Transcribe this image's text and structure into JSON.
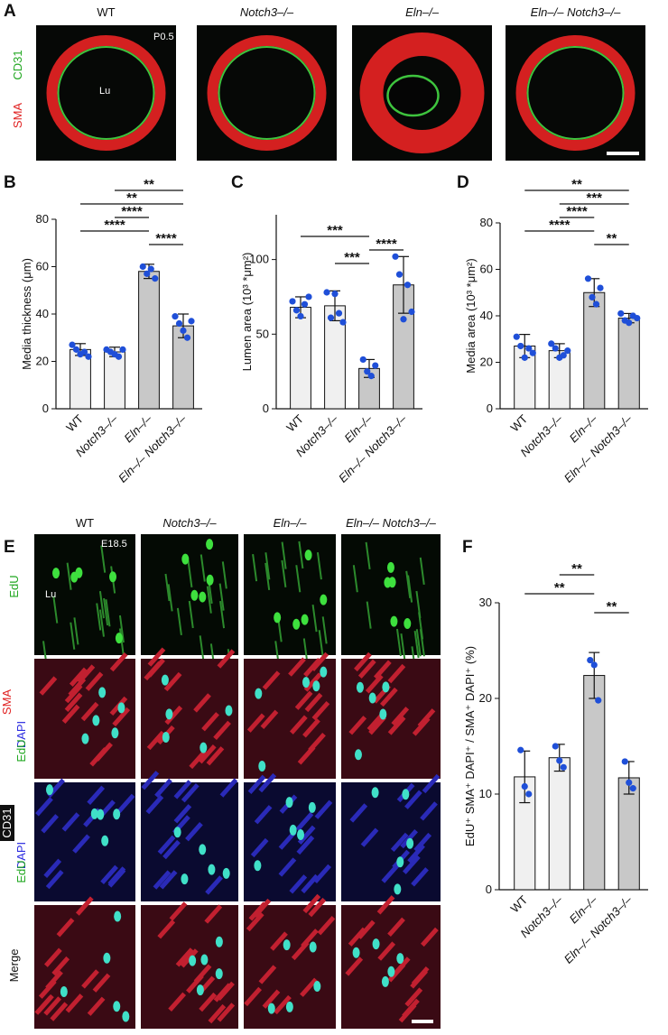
{
  "panel_a": {
    "letter": "A",
    "columns": [
      "WT",
      "Notch3–/–",
      "Eln–/–",
      "Eln–/– Notch3–/–"
    ],
    "stains": [
      "CD31",
      "SMA"
    ],
    "age": "P0.5",
    "lumen": "Lu"
  },
  "panel_e": {
    "letter": "E",
    "columns": [
      "WT",
      "Notch3–/–",
      "Eln–/–",
      "Eln–/– Notch3–/–"
    ],
    "age": "E18.5",
    "lumen": "Lu",
    "rows": [
      [
        "EdU"
      ],
      [
        "SMA",
        "DAPI",
        "EdU"
      ],
      [
        "CD31",
        "DAPI",
        "EdU"
      ],
      [
        "Merge"
      ]
    ]
  },
  "chart_data": [
    {
      "type": "bar",
      "panel": "B",
      "y_label": "Media thickness (μm)",
      "categories": [
        "WT",
        "Notch3–/–",
        "Eln–/–",
        "Eln–/– Notch3–/–"
      ],
      "values": [
        25,
        24,
        58,
        35
      ],
      "errors": [
        2.5,
        2,
        3,
        5
      ],
      "points": [
        [
          27,
          25,
          23,
          24,
          22
        ],
        [
          25,
          24,
          23,
          22,
          25
        ],
        [
          60,
          57,
          59,
          55
        ],
        [
          39,
          36,
          33,
          30,
          37
        ]
      ],
      "colors": [
        "#f0f0f0",
        "#f0f0f0",
        "#c8c8c8",
        "#c8c8c8"
      ],
      "point_color": "#1f4fd8",
      "ylim": [
        0,
        80
      ],
      "yticks": [
        0,
        20,
        40,
        60,
        80
      ],
      "significance": [
        {
          "between": [
            "Notch3–/–",
            "Eln–/– Notch3–/–"
          ],
          "label": "**"
        },
        {
          "between": [
            "WT",
            "Eln–/– Notch3–/–"
          ],
          "label": "**"
        },
        {
          "between": [
            "Notch3–/–",
            "Eln–/–"
          ],
          "label": "****"
        },
        {
          "between": [
            "WT",
            "Eln–/–"
          ],
          "label": "****"
        },
        {
          "between": [
            "Eln–/–",
            "Eln–/– Notch3–/–"
          ],
          "label": "****"
        }
      ]
    },
    {
      "type": "bar",
      "panel": "C",
      "y_label": "Lumen area (10³ *μm²)",
      "categories": [
        "WT",
        "Notch3–/–",
        "Eln–/–",
        "Eln–/– Notch3–/–"
      ],
      "values": [
        68,
        69,
        27,
        83
      ],
      "errors": [
        7,
        10,
        6,
        19
      ],
      "points": [
        [
          72,
          66,
          62,
          70,
          75
        ],
        [
          78,
          61,
          77,
          64,
          58
        ],
        [
          33,
          25,
          22,
          29
        ],
        [
          102,
          90,
          60,
          83,
          65
        ]
      ],
      "colors": [
        "#f0f0f0",
        "#f0f0f0",
        "#c8c8c8",
        "#c8c8c8"
      ],
      "point_color": "#1f4fd8",
      "ylim": [
        0,
        130
      ],
      "yticks": [
        0,
        50,
        100
      ],
      "significance": [
        {
          "between": [
            "WT",
            "Eln–/–"
          ],
          "label": "***"
        },
        {
          "between": [
            "Eln–/–",
            "Eln–/– Notch3–/–"
          ],
          "label": "****"
        },
        {
          "between": [
            "Notch3–/–",
            "Eln–/–"
          ],
          "label": "***"
        }
      ]
    },
    {
      "type": "bar",
      "panel": "D",
      "y_label": "Media area (10³ *μm²)",
      "categories": [
        "WT",
        "Notch3–/–",
        "Eln–/–",
        "Eln–/– Notch3–/–"
      ],
      "values": [
        27,
        25,
        50,
        39
      ],
      "errors": [
        5,
        3,
        6,
        2
      ],
      "points": [
        [
          31,
          27,
          22,
          26,
          24
        ],
        [
          28,
          26,
          22,
          23,
          25
        ],
        [
          56,
          48,
          45,
          52
        ],
        [
          41,
          38,
          37,
          40,
          39
        ]
      ],
      "colors": [
        "#f0f0f0",
        "#f0f0f0",
        "#c8c8c8",
        "#c8c8c8"
      ],
      "point_color": "#1f4fd8",
      "ylim": [
        0,
        80
      ],
      "yticks": [
        0,
        20,
        40,
        60,
        80
      ],
      "significance": [
        {
          "between": [
            "WT",
            "Eln–/– Notch3–/–"
          ],
          "label": "**"
        },
        {
          "between": [
            "Notch3–/–",
            "Eln–/– Notch3–/–"
          ],
          "label": "***"
        },
        {
          "between": [
            "Notch3–/–",
            "Eln–/–"
          ],
          "label": "****"
        },
        {
          "between": [
            "WT",
            "Eln–/–"
          ],
          "label": "****"
        },
        {
          "between": [
            "Eln–/–",
            "Eln–/– Notch3–/–"
          ],
          "label": "**"
        }
      ]
    },
    {
      "type": "bar",
      "panel": "F",
      "y_label": "EdU⁺ SMA⁺ DAPI⁺ / SMA⁺ DAPI⁺ (%)",
      "categories": [
        "WT",
        "Notch3–/–",
        "Eln–/–",
        "Eln–/– Notch3–/–"
      ],
      "values": [
        11.8,
        13.8,
        22.4,
        11.7
      ],
      "errors": [
        2.7,
        1.4,
        2.4,
        1.7
      ],
      "points": [
        [
          14.6,
          10.8,
          10
        ],
        [
          15,
          13.5,
          12.8
        ],
        [
          24,
          23.5,
          19.8
        ],
        [
          13.4,
          11.2,
          10.6
        ]
      ],
      "colors": [
        "#f0f0f0",
        "#f0f0f0",
        "#c8c8c8",
        "#c8c8c8"
      ],
      "point_color": "#1f4fd8",
      "ylim": [
        0,
        30
      ],
      "yticks": [
        0,
        10,
        20,
        30
      ],
      "significance": [
        {
          "between": [
            "Notch3–/–",
            "Eln–/–"
          ],
          "label": "**"
        },
        {
          "between": [
            "WT",
            "Eln–/–"
          ],
          "label": "**"
        },
        {
          "between": [
            "Eln–/–",
            "Eln–/– Notch3–/–"
          ],
          "label": "**"
        }
      ]
    }
  ]
}
